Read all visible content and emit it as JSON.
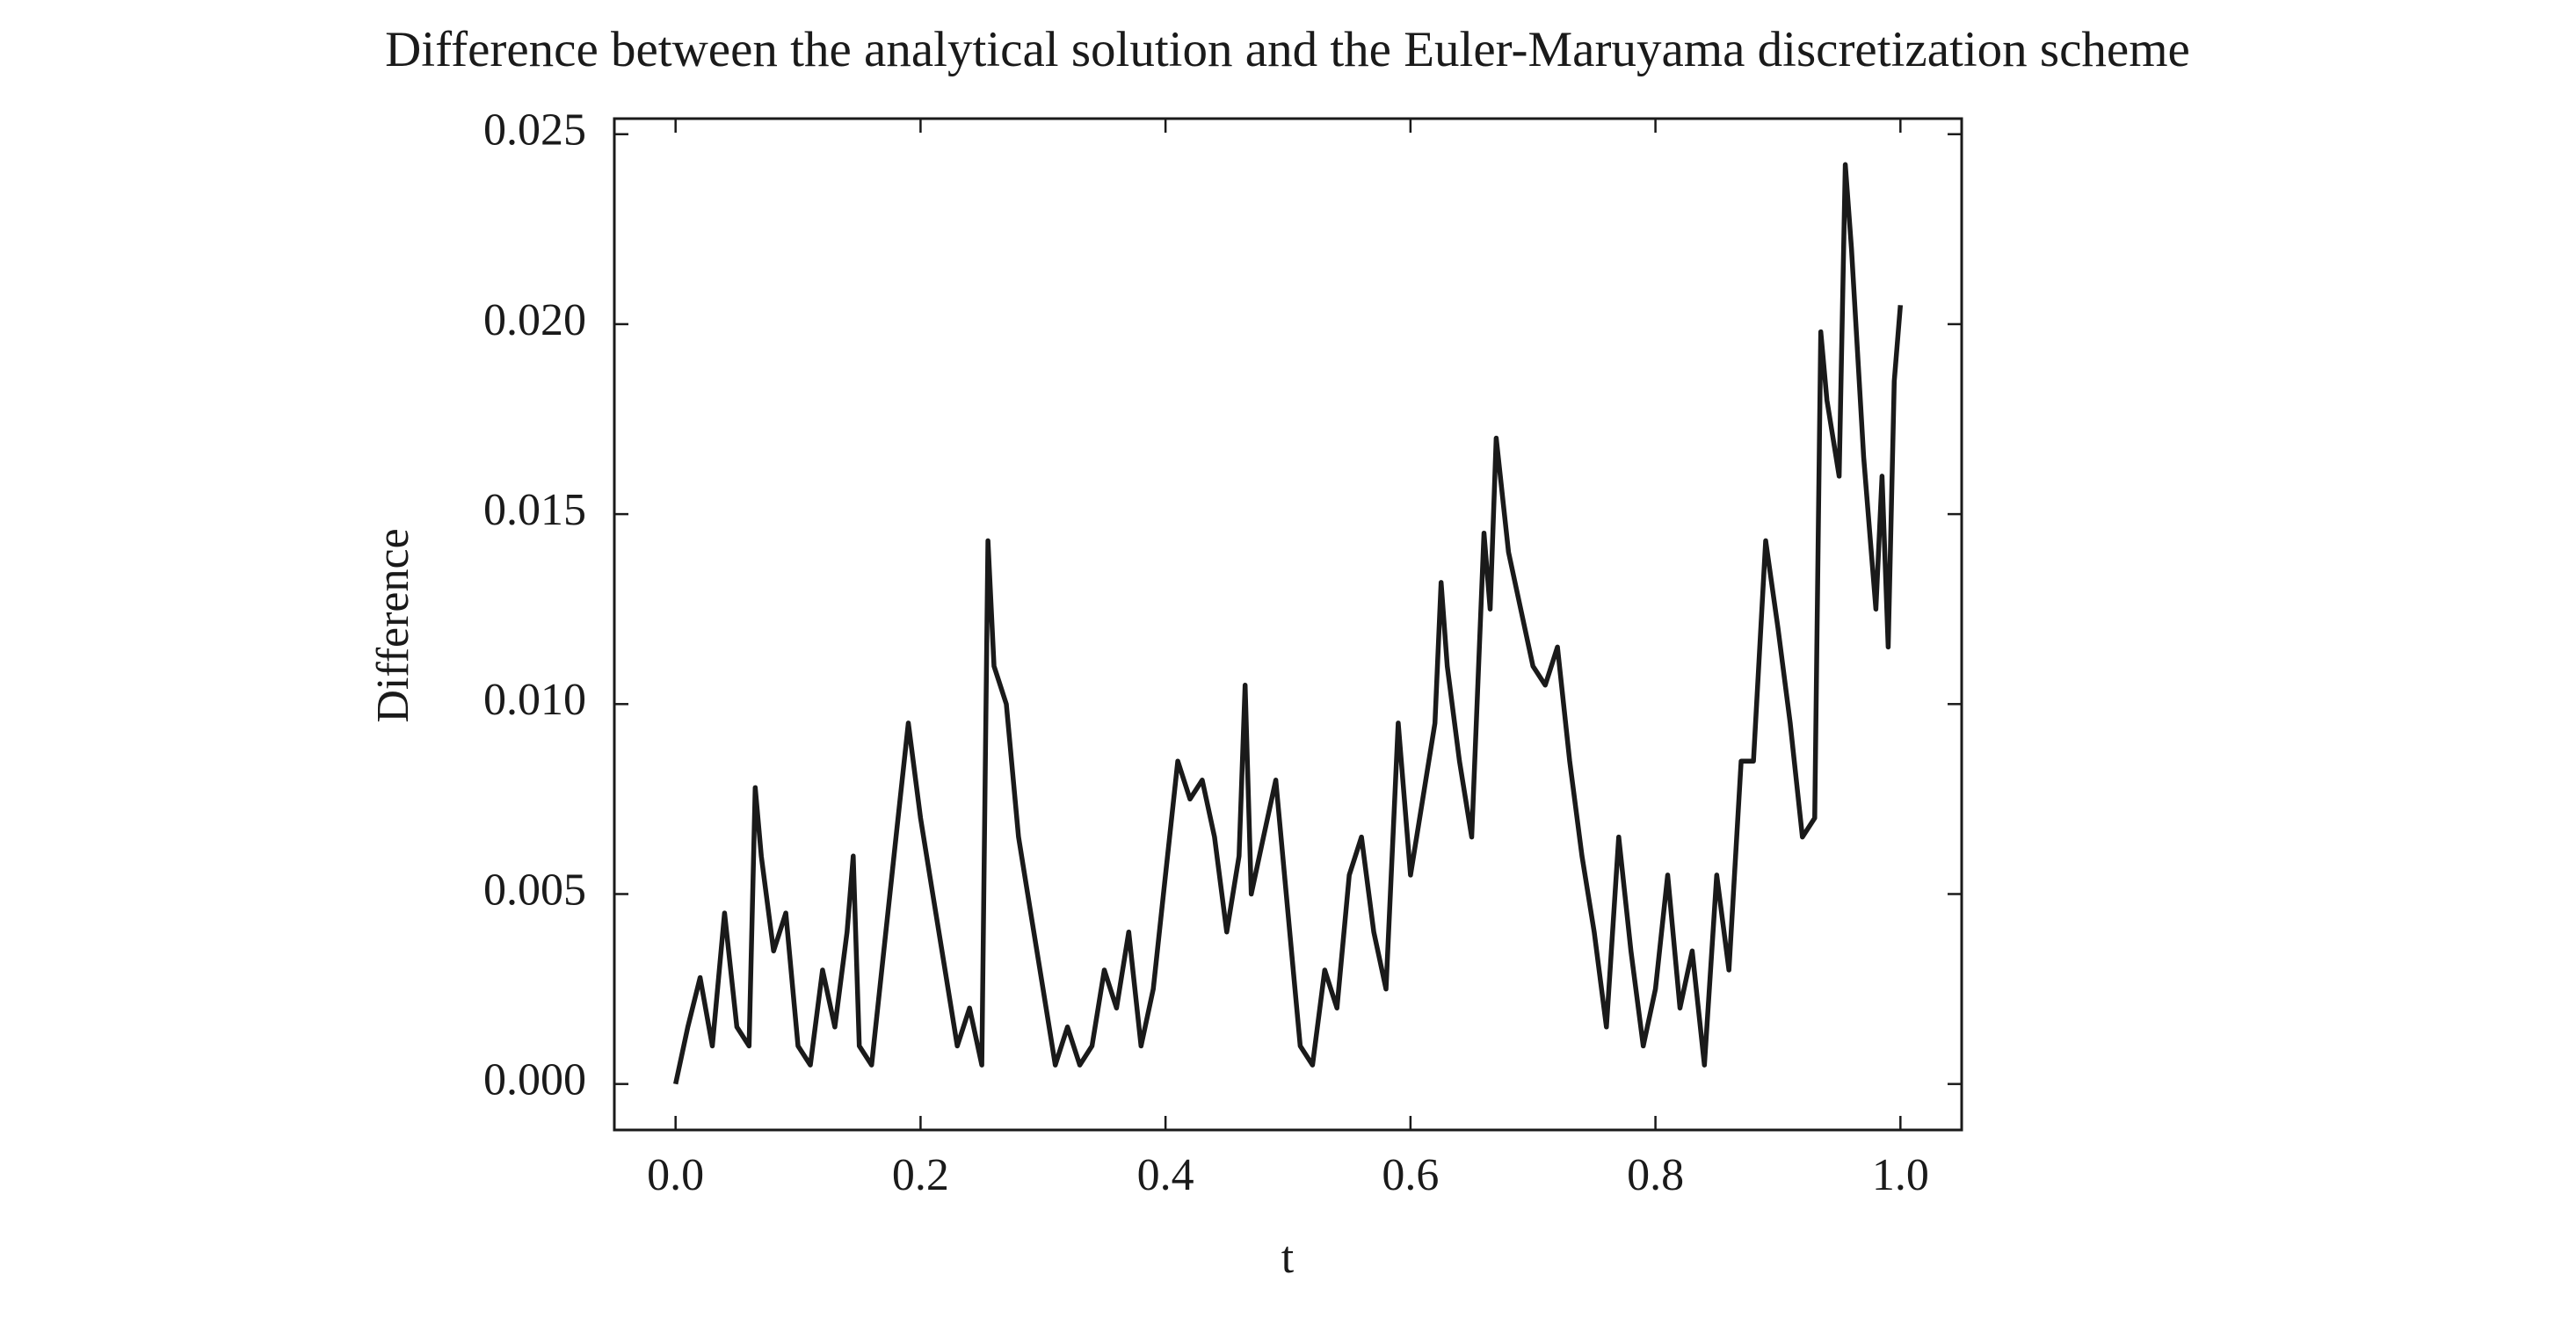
{
  "chart_data": {
    "type": "line",
    "title": "Difference between the analytical solution and the Euler-Maruyama discretization scheme",
    "xlabel": "t",
    "ylabel": "Difference",
    "x": [
      0.0,
      0.01,
      0.02,
      0.03,
      0.04,
      0.05,
      0.06,
      0.065,
      0.07,
      0.08,
      0.09,
      0.1,
      0.11,
      0.12,
      0.13,
      0.14,
      0.145,
      0.15,
      0.16,
      0.17,
      0.18,
      0.19,
      0.2,
      0.21,
      0.22,
      0.23,
      0.24,
      0.25,
      0.255,
      0.26,
      0.27,
      0.28,
      0.29,
      0.3,
      0.31,
      0.32,
      0.33,
      0.34,
      0.35,
      0.36,
      0.37,
      0.38,
      0.39,
      0.4,
      0.41,
      0.42,
      0.43,
      0.44,
      0.45,
      0.46,
      0.465,
      0.47,
      0.48,
      0.49,
      0.5,
      0.51,
      0.52,
      0.53,
      0.54,
      0.55,
      0.56,
      0.57,
      0.58,
      0.59,
      0.6,
      0.61,
      0.62,
      0.625,
      0.63,
      0.64,
      0.65,
      0.66,
      0.665,
      0.67,
      0.68,
      0.69,
      0.7,
      0.71,
      0.72,
      0.73,
      0.74,
      0.75,
      0.76,
      0.77,
      0.78,
      0.79,
      0.8,
      0.81,
      0.82,
      0.83,
      0.84,
      0.85,
      0.86,
      0.87,
      0.88,
      0.89,
      0.9,
      0.91,
      0.92,
      0.93,
      0.935,
      0.94,
      0.95,
      0.955,
      0.96,
      0.97,
      0.98,
      0.985,
      0.99,
      0.995,
      1.0
    ],
    "series": [
      {
        "color": "#1a1a1a",
        "values": [
          0.0,
          0.0015,
          0.0028,
          0.001,
          0.0045,
          0.0015,
          0.001,
          0.0078,
          0.006,
          0.0035,
          0.0045,
          0.001,
          0.0005,
          0.003,
          0.0015,
          0.004,
          0.006,
          0.001,
          0.0005,
          0.0035,
          0.0065,
          0.0095,
          0.007,
          0.005,
          0.003,
          0.001,
          0.002,
          0.0005,
          0.0143,
          0.011,
          0.01,
          0.0065,
          0.0045,
          0.0025,
          0.0005,
          0.0015,
          0.0005,
          0.001,
          0.003,
          0.002,
          0.004,
          0.001,
          0.0025,
          0.0055,
          0.0085,
          0.0075,
          0.008,
          0.0065,
          0.004,
          0.006,
          0.0105,
          0.005,
          0.0065,
          0.008,
          0.0045,
          0.001,
          0.0005,
          0.003,
          0.002,
          0.0055,
          0.0065,
          0.004,
          0.0025,
          0.0095,
          0.0055,
          0.0075,
          0.0095,
          0.0132,
          0.011,
          0.0085,
          0.0065,
          0.0145,
          0.0125,
          0.017,
          0.014,
          0.0125,
          0.011,
          0.0105,
          0.0115,
          0.0085,
          0.006,
          0.004,
          0.0015,
          0.0065,
          0.0035,
          0.001,
          0.0025,
          0.0055,
          0.002,
          0.0035,
          0.0005,
          0.0055,
          0.003,
          0.0085,
          0.0085,
          0.0143,
          0.012,
          0.0095,
          0.0065,
          0.007,
          0.0198,
          0.018,
          0.016,
          0.0242,
          0.022,
          0.0165,
          0.0125,
          0.016,
          0.0115,
          0.0185,
          0.0205
        ]
      }
    ],
    "xlim": [
      -0.05,
      1.05
    ],
    "ylim": [
      -0.00121,
      0.02541
    ],
    "xticks": [
      {
        "value": 0,
        "label": "0.0"
      },
      0.2,
      0.4,
      0.6,
      0.8,
      {
        "value": 1,
        "label": "1.0"
      }
    ],
    "yticks": [
      {
        "value": 0,
        "label": "0.000"
      },
      {
        "value": 0.005,
        "label": "0.005"
      },
      {
        "value": 0.01,
        "label": "0.010"
      },
      {
        "value": 0.015,
        "label": "0.015"
      },
      {
        "value": 0.02,
        "label": "0.020"
      },
      {
        "value": 0.025,
        "label": "0.025"
      }
    ]
  }
}
